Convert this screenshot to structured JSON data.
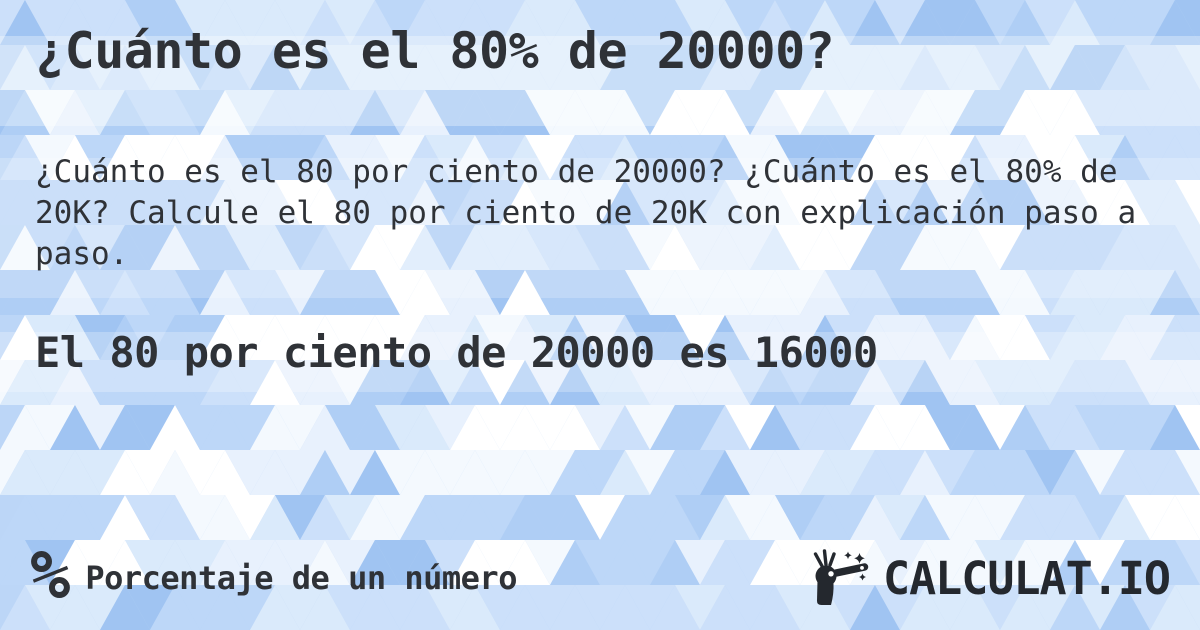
{
  "card": {
    "title": "¿Cuánto es el 80% de 20000?",
    "description": "¿Cuánto es el 80 por ciento de 20000? ¿Cuánto es el 80% de 20K? Calcule el 80 por ciento de 20K con explicación paso a paso.",
    "result": "El 80 por ciento de 20000 es 16000"
  },
  "footer": {
    "category": {
      "icon": "percent-icon",
      "icon_glyph": "%",
      "label": "Porcentaje de un número"
    },
    "brand": {
      "icon": "magic-wand-icon",
      "name": "CALCULAT.IO"
    }
  },
  "colors": {
    "text_primary": "#2f3237",
    "brand_text": "#24282e",
    "background_base": "#bcd6f7",
    "background_palette": [
      "#ffffff",
      "#f4f9fe",
      "#e8f1fd",
      "#daeafb",
      "#cce0fa",
      "#bdd7f8",
      "#afcef5",
      "#a0c4f2"
    ]
  }
}
